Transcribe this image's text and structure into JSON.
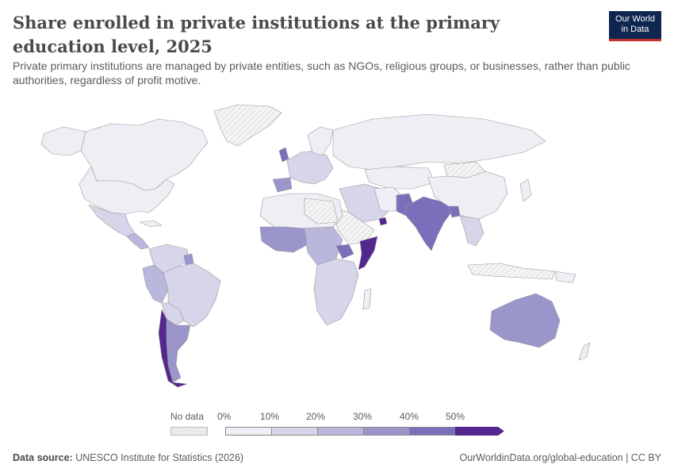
{
  "header": {
    "title": "Share enrolled in private institutions at the primary education level, 2025",
    "subtitle": "Private primary institutions are managed by private entities, such as NGOs, religious groups, or businesses, rather than public authorities, regardless of profit motive."
  },
  "logo": {
    "line1": "Our World",
    "line2": "in Data"
  },
  "legend": {
    "no_data_label": "No data",
    "bins": [
      {
        "label": "0%",
        "color": "#efeef5"
      },
      {
        "label": "10%",
        "color": "#d6d5ea"
      },
      {
        "label": "20%",
        "color": "#b9b7dc"
      },
      {
        "label": "30%",
        "color": "#9a96cb"
      },
      {
        "label": "40%",
        "color": "#7a6fba"
      },
      {
        "label": "50%",
        "color": "#54278f"
      }
    ]
  },
  "footer": {
    "source_label": "Data source:",
    "source_text": "UNESCO Institute for Statistics (2026)",
    "url_text": "OurWorldinData.org/global-education | CC BY"
  },
  "colors": {
    "no_data": "#e6e6e6",
    "border": "#9a9a9a",
    "accent": "#0f2650",
    "accent_bar": "#c4302b"
  }
}
